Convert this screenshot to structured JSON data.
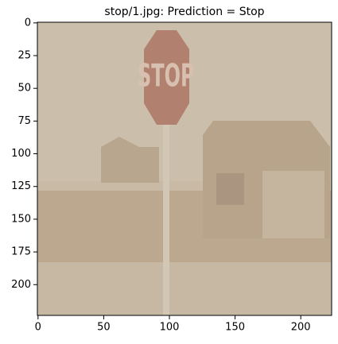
{
  "chart_data": {
    "type": "image",
    "title": "stop/1.jpg: Prediction = Stop",
    "xlim": [
      -0.5,
      223.5
    ],
    "ylim": [
      223.5,
      -0.5
    ],
    "xticks": [
      0,
      50,
      100,
      150,
      200
    ],
    "yticks": [
      0,
      25,
      50,
      75,
      100,
      125,
      150,
      175,
      200
    ]
  }
}
